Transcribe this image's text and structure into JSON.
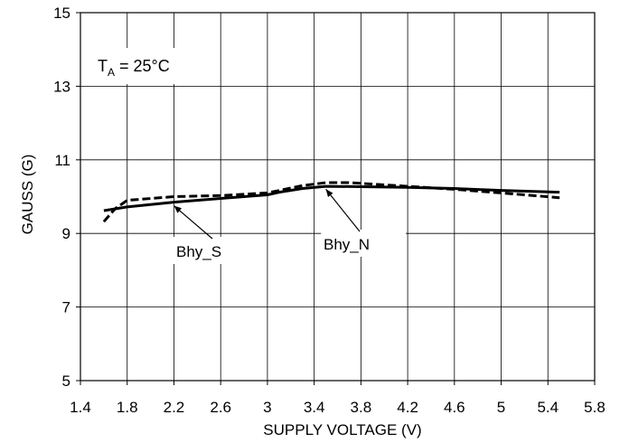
{
  "chart_data": {
    "type": "line",
    "xlabel": "SUPPLY VOLTAGE (V)",
    "ylabel": "GAUSS (G)",
    "xlim": [
      1.4,
      5.8
    ],
    "ylim": [
      5,
      15
    ],
    "xticks": [
      1.4,
      1.8,
      2.2,
      2.6,
      3,
      3.4,
      3.8,
      4.2,
      4.6,
      5,
      5.4,
      5.8
    ],
    "xtick_labels": [
      "1.4",
      "1.8",
      "2.2",
      "2.6",
      "3",
      "3.4",
      "3.8",
      "4.2",
      "4.6",
      "5",
      "5.4",
      "5.8"
    ],
    "yticks": [
      5,
      7,
      9,
      11,
      13,
      15
    ],
    "ytick_labels": [
      "5",
      "7",
      "9",
      "11",
      "13",
      "15"
    ],
    "grid": true,
    "annotation": {
      "text_main": "T",
      "text_sub": "A",
      "text_rest": " = 25°C"
    },
    "series": [
      {
        "name": "Bhy_S",
        "style": "solid",
        "x": [
          1.6,
          1.8,
          2.2,
          2.6,
          3.0,
          3.1,
          3.3,
          3.5,
          3.8,
          4.2,
          4.6,
          5.0,
          5.5
        ],
        "y": [
          9.62,
          9.72,
          9.85,
          9.95,
          10.05,
          10.12,
          10.22,
          10.28,
          10.27,
          10.25,
          10.22,
          10.17,
          10.12
        ],
        "label_at": [
          2.2,
          9.85
        ]
      },
      {
        "name": "Bhy_N",
        "style": "dashed",
        "x": [
          1.6,
          1.65,
          1.7,
          1.8,
          2.2,
          2.6,
          3.0,
          3.3,
          3.5,
          3.7,
          4.2,
          4.6,
          5.0,
          5.5
        ],
        "y": [
          9.32,
          9.5,
          9.68,
          9.9,
          10.0,
          10.03,
          10.1,
          10.3,
          10.38,
          10.38,
          10.28,
          10.2,
          10.1,
          9.97
        ],
        "label_at": [
          3.5,
          10.3
        ]
      }
    ],
    "colors": {
      "lines": "#000000",
      "grid": "#000000",
      "background": "#ffffff"
    }
  }
}
